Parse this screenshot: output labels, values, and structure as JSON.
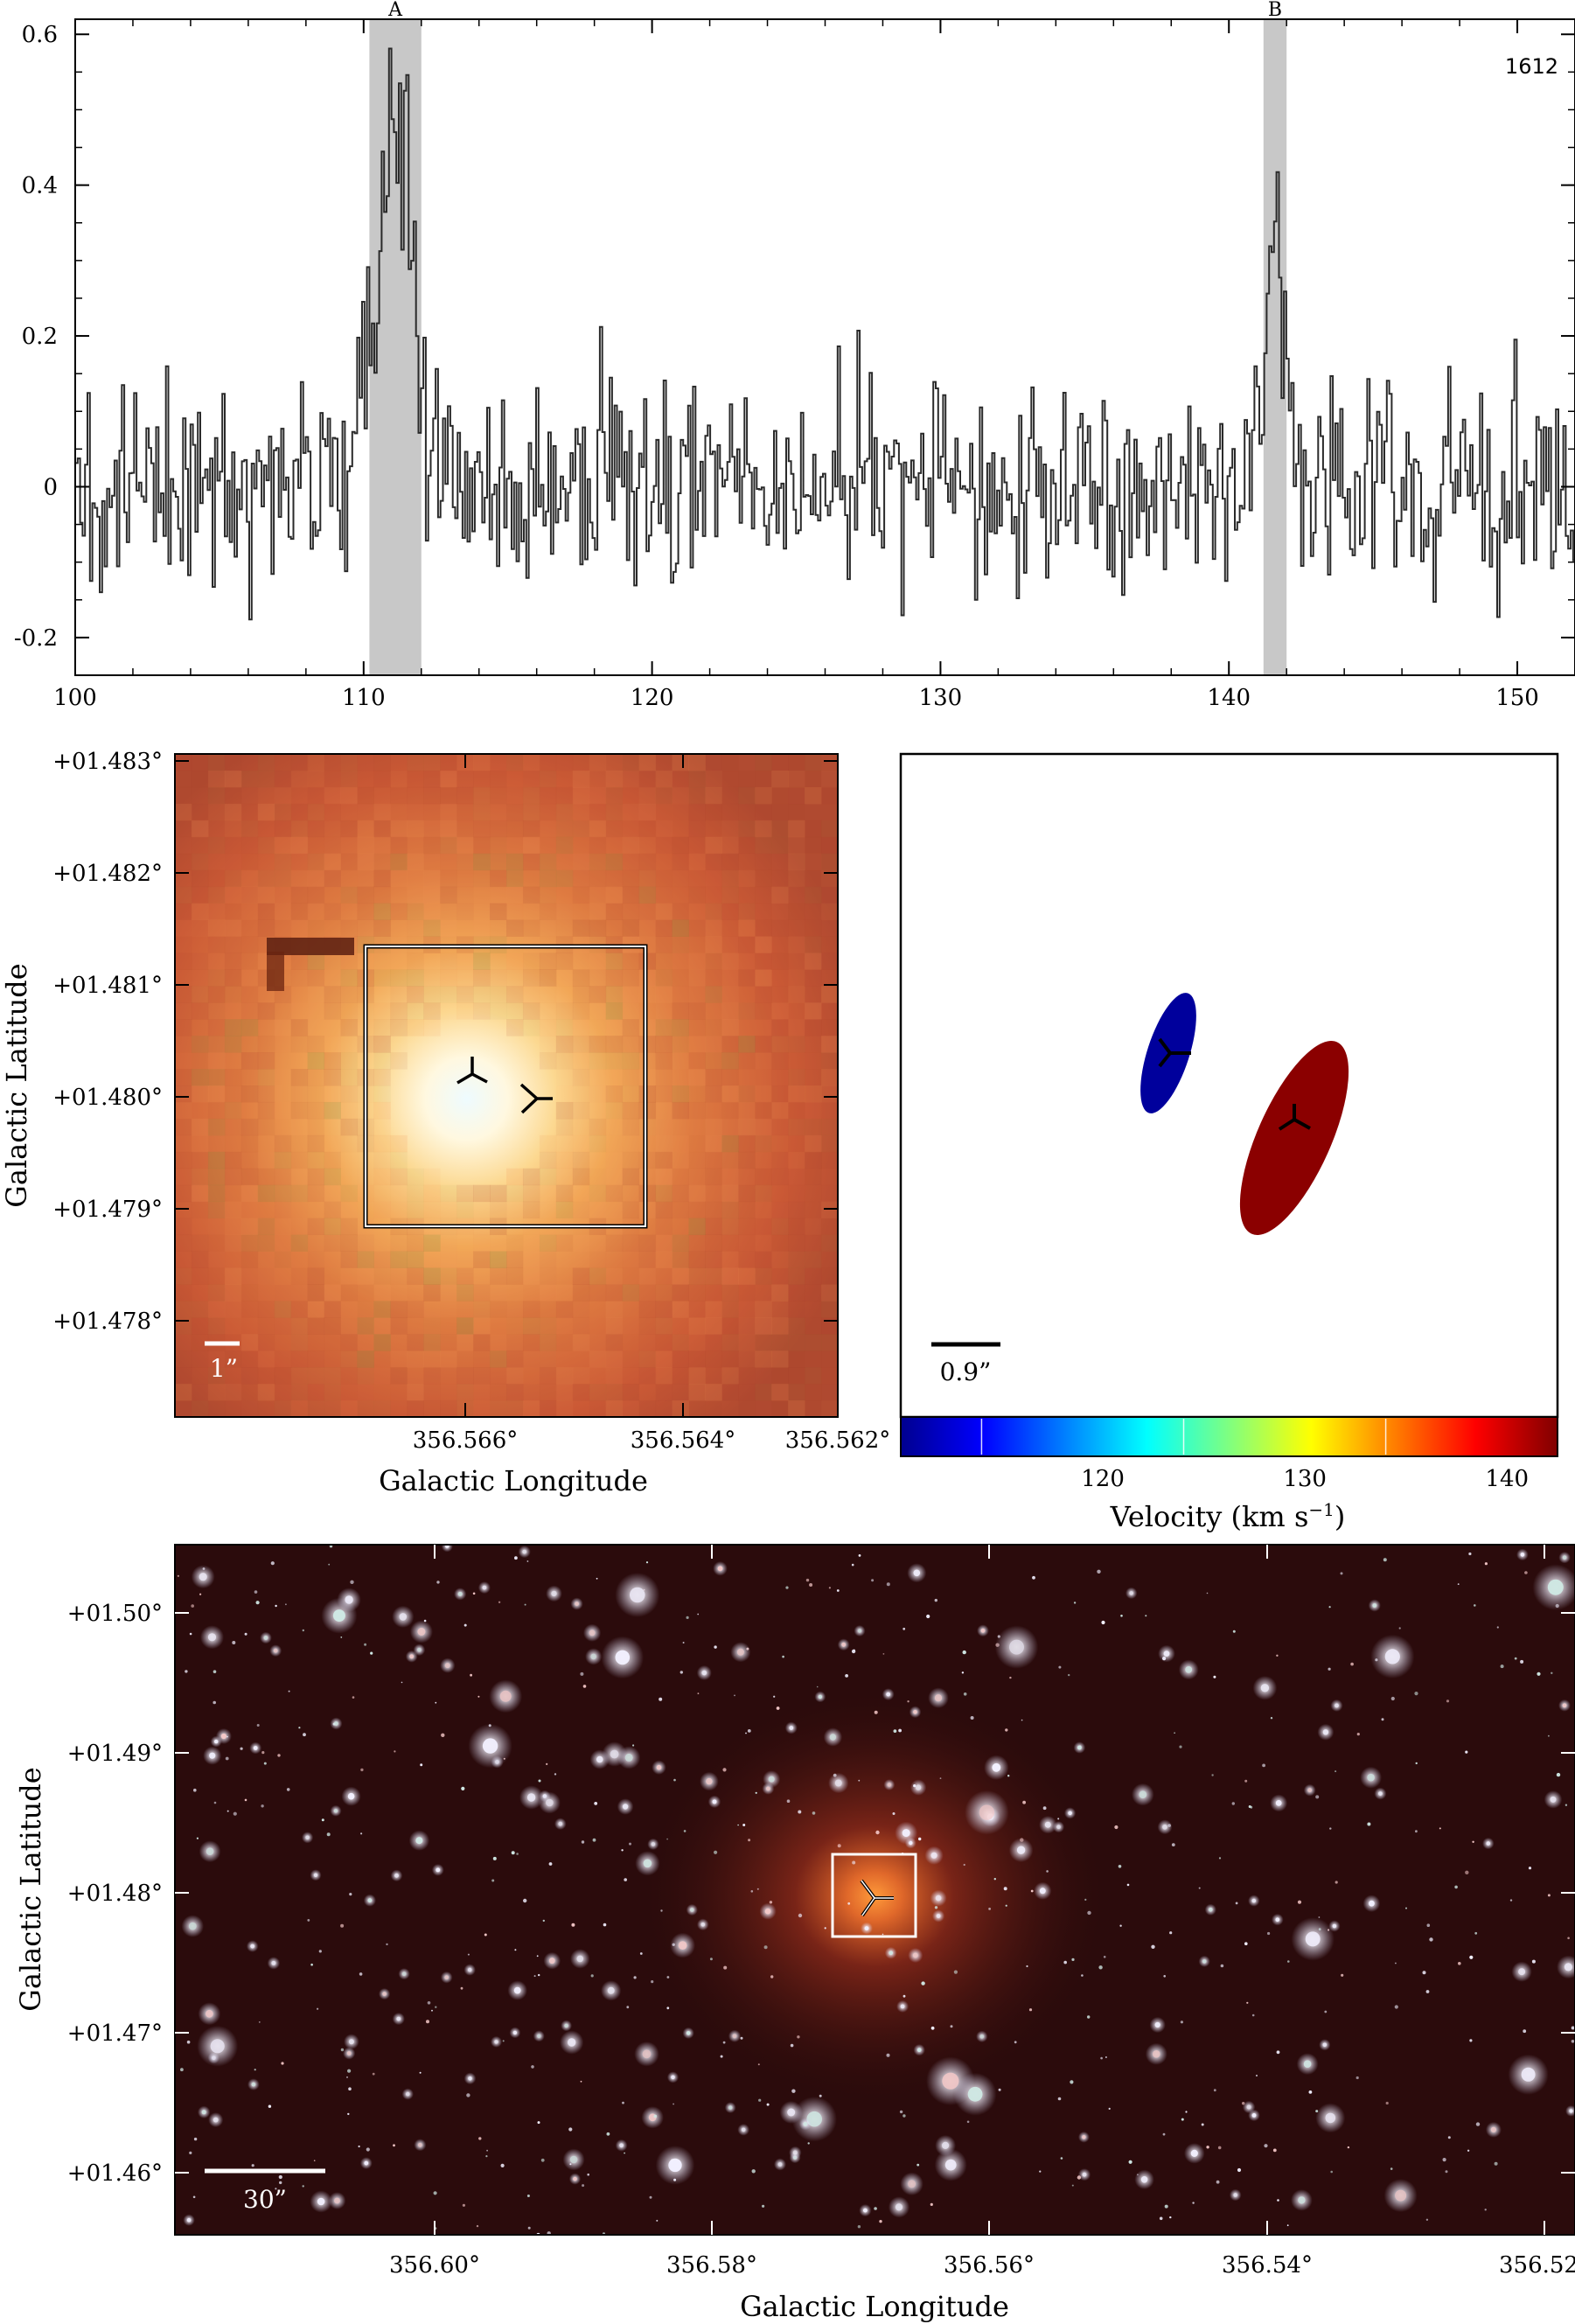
{
  "chart_data": [
    {
      "type": "line",
      "panel": "spectrum",
      "label_top_right": "1612",
      "xlim": [
        100,
        152
      ],
      "ylim": [
        -0.25,
        0.62
      ],
      "x_ticks": [
        "100",
        "110",
        "120",
        "130",
        "140",
        "150"
      ],
      "y_ticks": [
        "-0.2",
        "0",
        "0.2",
        "0.4",
        "0.6"
      ],
      "highlight_bands": [
        {
          "label": "A",
          "x0": 110.2,
          "x1": 112.0
        },
        {
          "label": "B",
          "x0": 141.2,
          "x1": 142.0
        }
      ],
      "peaks": [
        {
          "center": 111.0,
          "height": 0.56,
          "width": 0.55
        },
        {
          "center": 141.6,
          "height": 0.28,
          "width": 0.35
        }
      ],
      "noise_rms": 0.075
    },
    {
      "type": "heatmap",
      "panel": "zoom-image",
      "xlabel": "Galactic Longitude",
      "ylabel": "Galactic Latitude",
      "x_ticks": [
        "356.566°",
        "356.564°",
        "356.562°"
      ],
      "y_ticks": [
        "+01.483°",
        "+01.482°",
        "+01.481°",
        "+01.480°",
        "+01.479°",
        "+01.478°"
      ],
      "scale_bar": "1”"
    },
    {
      "type": "scatter",
      "panel": "maser-map",
      "scale_bar": "0.9”",
      "colorbar_label": "Velocity (km s",
      "colorbar_unit_exp": "−1",
      "colorbar_close": ")",
      "colorbar_range": [
        110,
        142.5
      ],
      "colorbar_ticks": [
        "120",
        "130",
        "140"
      ],
      "components": [
        {
          "velocity": 111,
          "color": "#00009c"
        },
        {
          "velocity": 141.6,
          "color": "#8b0000"
        }
      ]
    },
    {
      "type": "heatmap",
      "panel": "wide-field",
      "xlabel": "Galactic Longitude",
      "ylabel": "Galactic Latitude",
      "x_ticks": [
        "356.60°",
        "356.58°",
        "356.56°",
        "356.54°",
        "356.52°"
      ],
      "y_ticks": [
        "+01.50°",
        "+01.49°",
        "+01.48°",
        "+01.47°",
        "+01.46°"
      ],
      "scale_bar": "30”"
    }
  ]
}
